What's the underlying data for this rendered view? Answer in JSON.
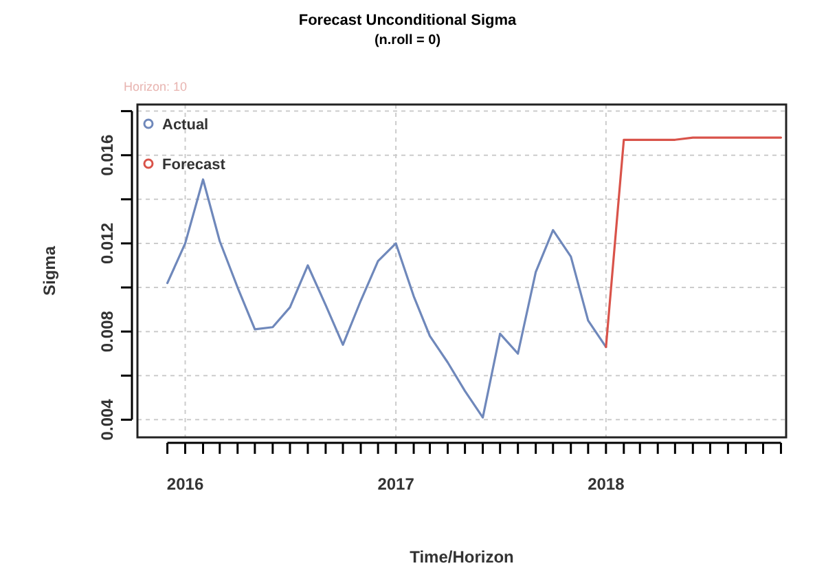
{
  "chart_data": {
    "type": "line",
    "title": "Forecast Unconditional Sigma",
    "subtitle": "(n.roll = 0)",
    "xlabel": "Time/Horizon",
    "ylabel": "Sigma",
    "annotations": [
      "Horizon: 10"
    ],
    "series": [
      {
        "name": "Actual",
        "color": "#6f88bb",
        "x": [
          "2015-12",
          "2016-01",
          "2016-02",
          "2016-03",
          "2016-04",
          "2016-05",
          "2016-06",
          "2016-07",
          "2016-08",
          "2016-09",
          "2016-10",
          "2016-11",
          "2016-12",
          "2017-01",
          "2017-02",
          "2017-03",
          "2017-04",
          "2017-05",
          "2017-06",
          "2017-07",
          "2017-08",
          "2017-09",
          "2017-10",
          "2017-11",
          "2017-12",
          "2018-01"
        ],
        "values": [
          0.0102,
          0.012,
          0.0149,
          0.0121,
          0.01,
          0.0081,
          0.0082,
          0.0091,
          0.011,
          0.0092,
          0.0074,
          0.0094,
          0.0112,
          0.012,
          0.0096,
          0.0078,
          0.0066,
          0.0053,
          0.0041,
          0.0079,
          0.007,
          0.0107,
          0.0126,
          0.0114,
          0.0085,
          0.0073
        ]
      },
      {
        "name": "Forecast",
        "color": "#d9534a",
        "x": [
          "2018-01",
          "2018-02",
          "2018-03",
          "2018-04",
          "2018-05",
          "2018-06",
          "2018-07",
          "2018-08",
          "2018-09",
          "2018-10",
          "2018-11"
        ],
        "values": [
          0.0073,
          0.0167,
          0.0167,
          0.0167,
          0.0167,
          0.0168,
          0.0168,
          0.0168,
          0.0168,
          0.0168,
          0.0168
        ]
      }
    ],
    "xlim": [
      "2015-10-10",
      "2018-11-10"
    ],
    "xticks": [
      {
        "value": "2015-12",
        "label": null
      },
      {
        "value": "2016-01",
        "label": "2016"
      },
      {
        "value": "2016-02",
        "label": null
      },
      {
        "value": "2016-03",
        "label": null
      },
      {
        "value": "2016-04",
        "label": null
      },
      {
        "value": "2016-05",
        "label": null
      },
      {
        "value": "2016-06",
        "label": null
      },
      {
        "value": "2016-07",
        "label": null
      },
      {
        "value": "2016-08",
        "label": null
      },
      {
        "value": "2016-09",
        "label": null
      },
      {
        "value": "2016-10",
        "label": null
      },
      {
        "value": "2016-11",
        "label": null
      },
      {
        "value": "2016-12",
        "label": null
      },
      {
        "value": "2017-01",
        "label": "2017"
      },
      {
        "value": "2017-02",
        "label": null
      },
      {
        "value": "2017-03",
        "label": null
      },
      {
        "value": "2017-04",
        "label": null
      },
      {
        "value": "2017-05",
        "label": null
      },
      {
        "value": "2017-06",
        "label": null
      },
      {
        "value": "2017-07",
        "label": null
      },
      {
        "value": "2017-08",
        "label": null
      },
      {
        "value": "2017-09",
        "label": null
      },
      {
        "value": "2017-10",
        "label": null
      },
      {
        "value": "2017-11",
        "label": null
      },
      {
        "value": "2017-12",
        "label": null
      },
      {
        "value": "2018-01",
        "label": "2018"
      },
      {
        "value": "2018-02",
        "label": null
      },
      {
        "value": "2018-03",
        "label": null
      },
      {
        "value": "2018-04",
        "label": null
      },
      {
        "value": "2018-05",
        "label": null
      },
      {
        "value": "2018-06",
        "label": null
      },
      {
        "value": "2018-07",
        "label": null
      },
      {
        "value": "2018-08",
        "label": null
      },
      {
        "value": "2018-09",
        "label": null
      },
      {
        "value": "2018-10",
        "label": null
      },
      {
        "value": "2018-11",
        "label": null
      }
    ],
    "ylim": [
      0.0032,
      0.0183
    ],
    "yticks": [
      0.004,
      {
        "value": 0.006,
        "label": null
      },
      0.008,
      {
        "value": 0.01,
        "label": null
      },
      0.012,
      {
        "value": 0.014,
        "label": null
      },
      0.016,
      {
        "value": 0.018,
        "label": null
      }
    ],
    "grid": true,
    "legend": "top left",
    "marker": "none",
    "line_style": "solid"
  }
}
